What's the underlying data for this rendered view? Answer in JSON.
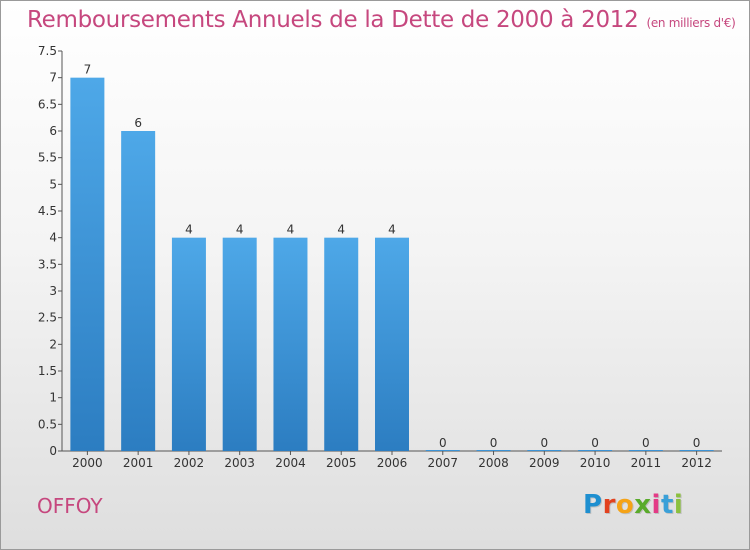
{
  "header": {
    "title": "Remboursements Annuels de la Dette de 2000 à 2012",
    "unit": "(en milliers d'€)"
  },
  "footer": {
    "commune": "OFFOY",
    "logo_text": "Proxiti",
    "logo_colors": [
      "#1e8fd0",
      "#e2421f",
      "#f5a317",
      "#5aab2b",
      "#e33b86",
      "#3aa0d8",
      "#8bc03e"
    ]
  },
  "colors": {
    "title": "#c6477e",
    "bar": "#4ea8e8",
    "bar_dark": "#2c7dc1",
    "axis": "#555555"
  },
  "chart_data": {
    "type": "bar",
    "title": "Remboursements Annuels de la Dette de 2000 à 2012",
    "xlabel": "",
    "ylabel": "",
    "categories": [
      "2000",
      "2001",
      "2002",
      "2003",
      "2004",
      "2005",
      "2006",
      "2007",
      "2008",
      "2009",
      "2010",
      "2011",
      "2012"
    ],
    "values": [
      7,
      6,
      4,
      4,
      4,
      4,
      4,
      0,
      0,
      0,
      0,
      0,
      0
    ],
    "ylim": [
      0,
      7.5
    ],
    "yticks": [
      "0",
      "0.5",
      "1",
      "1.5",
      "2",
      "2.5",
      "3",
      "3.5",
      "4",
      "4.5",
      "5",
      "5.5",
      "6",
      "6.5",
      "7",
      "7.5"
    ],
    "grid": false,
    "legend": "none"
  }
}
